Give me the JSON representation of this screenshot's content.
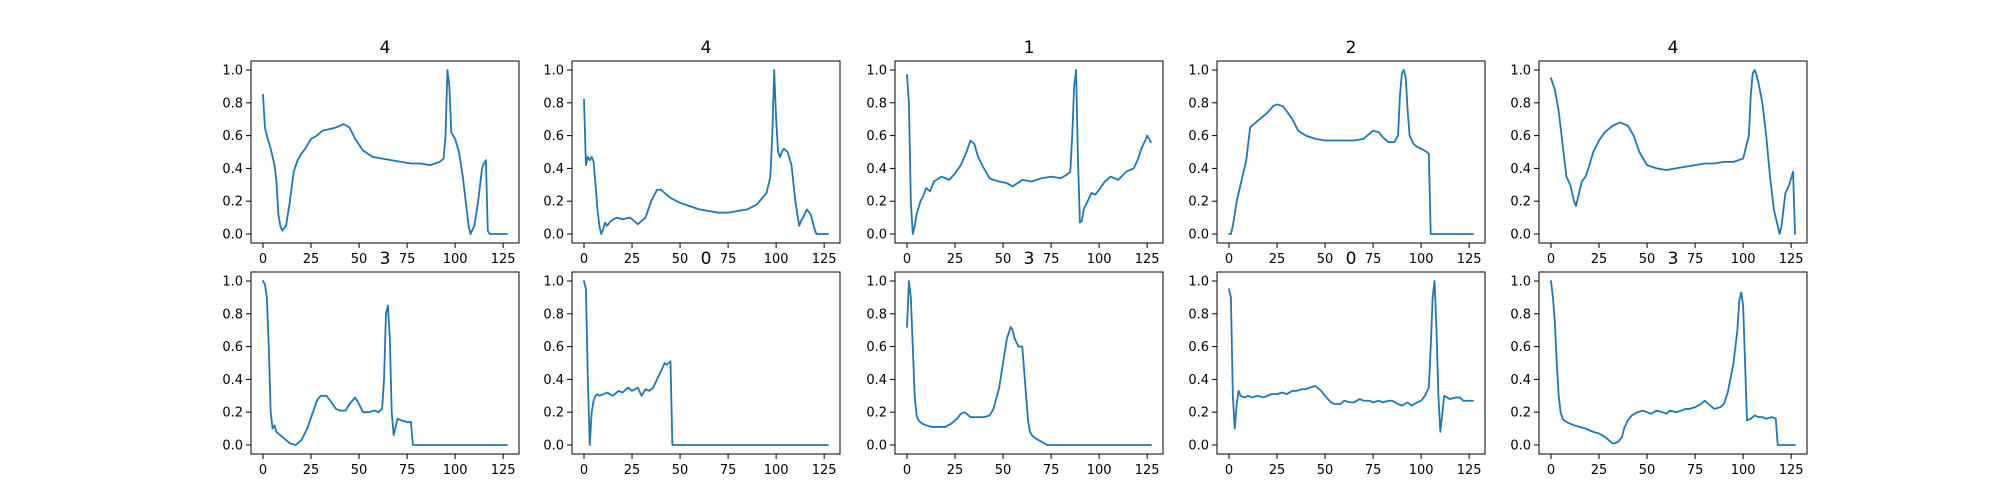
{
  "chart_data": [
    {
      "type": "line",
      "title": "4",
      "xlim": [
        0,
        127
      ],
      "ylim": [
        0,
        1
      ],
      "xticks": [
        0,
        25,
        50,
        75,
        100,
        125
      ],
      "yticks": [
        0.0,
        0.2,
        0.4,
        0.6,
        0.8,
        1.0
      ],
      "x": [
        0,
        1,
        2,
        4,
        6,
        7,
        8,
        9,
        10,
        12,
        14,
        16,
        18,
        20,
        22,
        25,
        28,
        31,
        35,
        38,
        42,
        45,
        48,
        52,
        57,
        62,
        67,
        72,
        77,
        82,
        87,
        92,
        94,
        95,
        96,
        97,
        98,
        100,
        102,
        104,
        106,
        107,
        108,
        110,
        112,
        114,
        115,
        116,
        117,
        118,
        127
      ],
      "y": [
        0.85,
        0.65,
        0.6,
        0.52,
        0.42,
        0.32,
        0.12,
        0.05,
        0.02,
        0.05,
        0.2,
        0.38,
        0.45,
        0.49,
        0.52,
        0.58,
        0.6,
        0.63,
        0.64,
        0.65,
        0.67,
        0.65,
        0.58,
        0.51,
        0.47,
        0.46,
        0.45,
        0.44,
        0.43,
        0.43,
        0.42,
        0.44,
        0.46,
        0.6,
        1.0,
        0.9,
        0.62,
        0.58,
        0.5,
        0.35,
        0.15,
        0.05,
        0.0,
        0.05,
        0.2,
        0.4,
        0.43,
        0.45,
        0.02,
        0.0,
        0.0
      ]
    },
    {
      "type": "line",
      "title": "4",
      "xlim": [
        0,
        127
      ],
      "ylim": [
        0,
        1
      ],
      "xticks": [
        0,
        25,
        50,
        75,
        100,
        125
      ],
      "yticks": [
        0.0,
        0.2,
        0.4,
        0.6,
        0.8,
        1.0
      ],
      "x": [
        0,
        1,
        2,
        3,
        4,
        5,
        6,
        7,
        8,
        9,
        10,
        11,
        12,
        14,
        17,
        20,
        24,
        28,
        32,
        35,
        38,
        40,
        42,
        45,
        50,
        55,
        60,
        65,
        70,
        75,
        80,
        85,
        90,
        95,
        97,
        98,
        99,
        100,
        101,
        102,
        103,
        104,
        106,
        108,
        110,
        112,
        113,
        114,
        116,
        118,
        120,
        121,
        122,
        127
      ],
      "y": [
        0.82,
        0.42,
        0.47,
        0.45,
        0.47,
        0.44,
        0.3,
        0.15,
        0.05,
        0.0,
        0.03,
        0.07,
        0.05,
        0.08,
        0.1,
        0.09,
        0.1,
        0.06,
        0.1,
        0.2,
        0.27,
        0.27,
        0.25,
        0.22,
        0.19,
        0.17,
        0.15,
        0.14,
        0.13,
        0.13,
        0.14,
        0.15,
        0.18,
        0.25,
        0.35,
        0.6,
        1.0,
        0.7,
        0.5,
        0.47,
        0.5,
        0.52,
        0.5,
        0.42,
        0.2,
        0.05,
        0.08,
        0.1,
        0.15,
        0.12,
        0.03,
        0.0,
        0.0,
        0.0
      ]
    },
    {
      "type": "line",
      "title": "1",
      "xlim": [
        0,
        127
      ],
      "ylim": [
        0,
        1
      ],
      "xticks": [
        0,
        25,
        50,
        75,
        100,
        125
      ],
      "yticks": [
        0.0,
        0.2,
        0.4,
        0.6,
        0.8,
        1.0
      ],
      "x": [
        0,
        1,
        2,
        3,
        4,
        5,
        7,
        8,
        10,
        12,
        14,
        18,
        22,
        25,
        28,
        31,
        33,
        35,
        37,
        40,
        43,
        45,
        48,
        52,
        55,
        60,
        65,
        70,
        75,
        80,
        83,
        85,
        86,
        87,
        88,
        89,
        90,
        91,
        92,
        94,
        96,
        98,
        100,
        103,
        106,
        110,
        114,
        118,
        120,
        122,
        124,
        125,
        127
      ],
      "y": [
        0.97,
        0.8,
        0.2,
        0.0,
        0.05,
        0.12,
        0.2,
        0.22,
        0.28,
        0.26,
        0.32,
        0.35,
        0.33,
        0.37,
        0.42,
        0.5,
        0.57,
        0.55,
        0.47,
        0.4,
        0.34,
        0.33,
        0.32,
        0.31,
        0.29,
        0.33,
        0.32,
        0.34,
        0.35,
        0.34,
        0.36,
        0.38,
        0.6,
        0.9,
        1.0,
        0.45,
        0.07,
        0.08,
        0.15,
        0.2,
        0.25,
        0.24,
        0.27,
        0.32,
        0.35,
        0.33,
        0.38,
        0.4,
        0.45,
        0.52,
        0.57,
        0.6,
        0.56
      ]
    },
    {
      "type": "line",
      "title": "2",
      "xlim": [
        0,
        127
      ],
      "ylim": [
        0,
        1
      ],
      "xticks": [
        0,
        25,
        50,
        75,
        100,
        125
      ],
      "yticks": [
        0.0,
        0.2,
        0.4,
        0.6,
        0.8,
        1.0
      ],
      "x": [
        0,
        1,
        2,
        3,
        4,
        5,
        7,
        9,
        10,
        11,
        12,
        14,
        17,
        20,
        23,
        25,
        28,
        30,
        33,
        36,
        40,
        45,
        50,
        55,
        60,
        65,
        70,
        73,
        75,
        78,
        80,
        83,
        86,
        88,
        89,
        90,
        91,
        92,
        93,
        94,
        96,
        98,
        100,
        103,
        104,
        105,
        127
      ],
      "y": [
        0.0,
        0.0,
        0.05,
        0.12,
        0.2,
        0.25,
        0.35,
        0.45,
        0.55,
        0.65,
        0.66,
        0.68,
        0.71,
        0.74,
        0.78,
        0.79,
        0.78,
        0.75,
        0.7,
        0.63,
        0.6,
        0.58,
        0.57,
        0.57,
        0.57,
        0.57,
        0.58,
        0.61,
        0.63,
        0.62,
        0.59,
        0.56,
        0.56,
        0.6,
        0.85,
        0.98,
        1.0,
        0.95,
        0.75,
        0.6,
        0.55,
        0.53,
        0.52,
        0.5,
        0.49,
        0.0,
        0.0
      ]
    },
    {
      "type": "line",
      "title": "4",
      "xlim": [
        0,
        127
      ],
      "ylim": [
        0,
        1
      ],
      "xticks": [
        0,
        25,
        50,
        75,
        100,
        125
      ],
      "yticks": [
        0.0,
        0.2,
        0.4,
        0.6,
        0.8,
        1.0
      ],
      "x": [
        0,
        2,
        4,
        6,
        8,
        10,
        12,
        13,
        14,
        16,
        18,
        20,
        22,
        25,
        28,
        32,
        36,
        40,
        43,
        46,
        50,
        55,
        60,
        65,
        70,
        75,
        80,
        85,
        90,
        95,
        100,
        103,
        104,
        105,
        106,
        107,
        108,
        110,
        112,
        114,
        116,
        118,
        119,
        120,
        121,
        122,
        124,
        126,
        127
      ],
      "y": [
        0.95,
        0.88,
        0.75,
        0.55,
        0.35,
        0.3,
        0.2,
        0.17,
        0.22,
        0.32,
        0.35,
        0.42,
        0.5,
        0.57,
        0.62,
        0.66,
        0.68,
        0.66,
        0.6,
        0.5,
        0.42,
        0.4,
        0.39,
        0.4,
        0.41,
        0.42,
        0.43,
        0.43,
        0.44,
        0.44,
        0.46,
        0.6,
        0.85,
        0.98,
        1.0,
        0.97,
        0.92,
        0.8,
        0.6,
        0.35,
        0.15,
        0.05,
        0.0,
        0.05,
        0.15,
        0.25,
        0.3,
        0.38,
        0.0
      ]
    },
    {
      "type": "line",
      "title": "3",
      "xlim": [
        0,
        127
      ],
      "ylim": [
        0,
        1
      ],
      "xticks": [
        0,
        25,
        50,
        75,
        100,
        125
      ],
      "yticks": [
        0.0,
        0.2,
        0.4,
        0.6,
        0.8,
        1.0
      ],
      "x": [
        0,
        1,
        2,
        3,
        4,
        5,
        6,
        7,
        8,
        10,
        12,
        14,
        17,
        20,
        23,
        26,
        28,
        30,
        33,
        35,
        38,
        40,
        43,
        45,
        48,
        50,
        52,
        55,
        58,
        60,
        62,
        63,
        64,
        65,
        66,
        67,
        68,
        70,
        72,
        75,
        77,
        78,
        79,
        80,
        127
      ],
      "y": [
        1.0,
        0.98,
        0.9,
        0.6,
        0.2,
        0.1,
        0.12,
        0.08,
        0.07,
        0.05,
        0.03,
        0.01,
        0.0,
        0.03,
        0.1,
        0.2,
        0.27,
        0.3,
        0.3,
        0.27,
        0.22,
        0.21,
        0.21,
        0.25,
        0.29,
        0.25,
        0.2,
        0.2,
        0.21,
        0.2,
        0.22,
        0.4,
        0.8,
        0.85,
        0.65,
        0.2,
        0.06,
        0.16,
        0.15,
        0.14,
        0.14,
        0.0,
        0.0,
        0.0,
        0.0
      ]
    },
    {
      "type": "line",
      "title": "0",
      "xlim": [
        0,
        127
      ],
      "ylim": [
        0,
        1
      ],
      "xticks": [
        0,
        25,
        50,
        75,
        100,
        125
      ],
      "yticks": [
        0.0,
        0.2,
        0.4,
        0.6,
        0.8,
        1.0
      ],
      "x": [
        0,
        1,
        2,
        3,
        4,
        5,
        6,
        7,
        8,
        10,
        12,
        15,
        18,
        20,
        23,
        25,
        28,
        30,
        32,
        34,
        36,
        38,
        40,
        42,
        43,
        44,
        45,
        46,
        47,
        127
      ],
      "y": [
        1.0,
        0.95,
        0.4,
        0.0,
        0.2,
        0.27,
        0.3,
        0.31,
        0.3,
        0.31,
        0.32,
        0.3,
        0.33,
        0.32,
        0.35,
        0.33,
        0.35,
        0.3,
        0.34,
        0.33,
        0.35,
        0.4,
        0.45,
        0.5,
        0.49,
        0.5,
        0.51,
        0.0,
        0.0,
        0.0
      ]
    },
    {
      "type": "line",
      "title": "3",
      "xlim": [
        0,
        127
      ],
      "ylim": [
        0,
        1
      ],
      "xticks": [
        0,
        25,
        50,
        75,
        100,
        125
      ],
      "yticks": [
        0.0,
        0.2,
        0.4,
        0.6,
        0.8,
        1.0
      ],
      "x": [
        0,
        1,
        2,
        3,
        4,
        5,
        6,
        8,
        10,
        13,
        16,
        20,
        23,
        26,
        28,
        30,
        33,
        36,
        40,
        43,
        45,
        48,
        50,
        52,
        54,
        55,
        56,
        58,
        60,
        61,
        62,
        63,
        64,
        65,
        67,
        70,
        73,
        75,
        80,
        127
      ],
      "y": [
        0.72,
        1.0,
        0.9,
        0.6,
        0.3,
        0.18,
        0.15,
        0.13,
        0.12,
        0.11,
        0.11,
        0.11,
        0.13,
        0.16,
        0.19,
        0.2,
        0.17,
        0.17,
        0.17,
        0.18,
        0.22,
        0.35,
        0.5,
        0.65,
        0.72,
        0.7,
        0.65,
        0.6,
        0.6,
        0.45,
        0.3,
        0.15,
        0.08,
        0.06,
        0.04,
        0.02,
        0.0,
        0.0,
        0.0,
        0.0
      ]
    },
    {
      "type": "line",
      "title": "0",
      "xlim": [
        0,
        127
      ],
      "ylim": [
        0,
        1
      ],
      "xticks": [
        0,
        25,
        50,
        75,
        100,
        125
      ],
      "yticks": [
        0.0,
        0.2,
        0.4,
        0.6,
        0.8,
        1.0
      ],
      "x": [
        0,
        1,
        2,
        3,
        4,
        5,
        6,
        8,
        10,
        12,
        15,
        18,
        20,
        22,
        25,
        28,
        30,
        33,
        35,
        38,
        40,
        42,
        45,
        48,
        50,
        53,
        55,
        58,
        60,
        63,
        65,
        68,
        70,
        73,
        75,
        78,
        80,
        83,
        85,
        88,
        90,
        93,
        95,
        98,
        100,
        102,
        104,
        105,
        106,
        107,
        108,
        109,
        110,
        112,
        115,
        118,
        120,
        122,
        125,
        127
      ],
      "y": [
        0.95,
        0.9,
        0.3,
        0.1,
        0.25,
        0.33,
        0.3,
        0.29,
        0.3,
        0.29,
        0.3,
        0.29,
        0.3,
        0.31,
        0.31,
        0.32,
        0.31,
        0.33,
        0.33,
        0.34,
        0.34,
        0.35,
        0.36,
        0.33,
        0.3,
        0.26,
        0.25,
        0.25,
        0.27,
        0.26,
        0.26,
        0.28,
        0.27,
        0.27,
        0.26,
        0.27,
        0.26,
        0.27,
        0.27,
        0.25,
        0.24,
        0.26,
        0.24,
        0.26,
        0.27,
        0.3,
        0.35,
        0.6,
        0.9,
        1.0,
        0.7,
        0.3,
        0.08,
        0.3,
        0.28,
        0.29,
        0.29,
        0.27,
        0.27,
        0.27
      ]
    },
    {
      "type": "line",
      "title": "3",
      "xlim": [
        0,
        127
      ],
      "ylim": [
        0,
        1
      ],
      "xticks": [
        0,
        25,
        50,
        75,
        100,
        125
      ],
      "yticks": [
        0.0,
        0.2,
        0.4,
        0.6,
        0.8,
        1.0
      ],
      "x": [
        0,
        1,
        2,
        3,
        4,
        5,
        6,
        8,
        10,
        12,
        15,
        18,
        20,
        22,
        25,
        28,
        30,
        31,
        32,
        33,
        35,
        37,
        38,
        40,
        42,
        45,
        48,
        50,
        52,
        55,
        58,
        60,
        62,
        65,
        68,
        70,
        72,
        75,
        78,
        80,
        82,
        85,
        88,
        90,
        92,
        95,
        97,
        98,
        99,
        100,
        101,
        102,
        104,
        106,
        108,
        110,
        112,
        115,
        117,
        118,
        119,
        120,
        127
      ],
      "y": [
        1.0,
        0.9,
        0.75,
        0.5,
        0.3,
        0.2,
        0.16,
        0.14,
        0.13,
        0.12,
        0.11,
        0.1,
        0.09,
        0.08,
        0.07,
        0.05,
        0.03,
        0.02,
        0.01,
        0.01,
        0.02,
        0.05,
        0.1,
        0.15,
        0.18,
        0.2,
        0.21,
        0.2,
        0.19,
        0.21,
        0.2,
        0.19,
        0.21,
        0.2,
        0.21,
        0.22,
        0.22,
        0.23,
        0.25,
        0.27,
        0.25,
        0.22,
        0.23,
        0.25,
        0.32,
        0.5,
        0.7,
        0.88,
        0.93,
        0.85,
        0.5,
        0.15,
        0.16,
        0.18,
        0.17,
        0.17,
        0.16,
        0.17,
        0.16,
        0.0,
        0.0,
        0.0,
        0.0
      ]
    }
  ],
  "style": {
    "line_color": "#1f77b4",
    "frame_color": "#000000"
  }
}
